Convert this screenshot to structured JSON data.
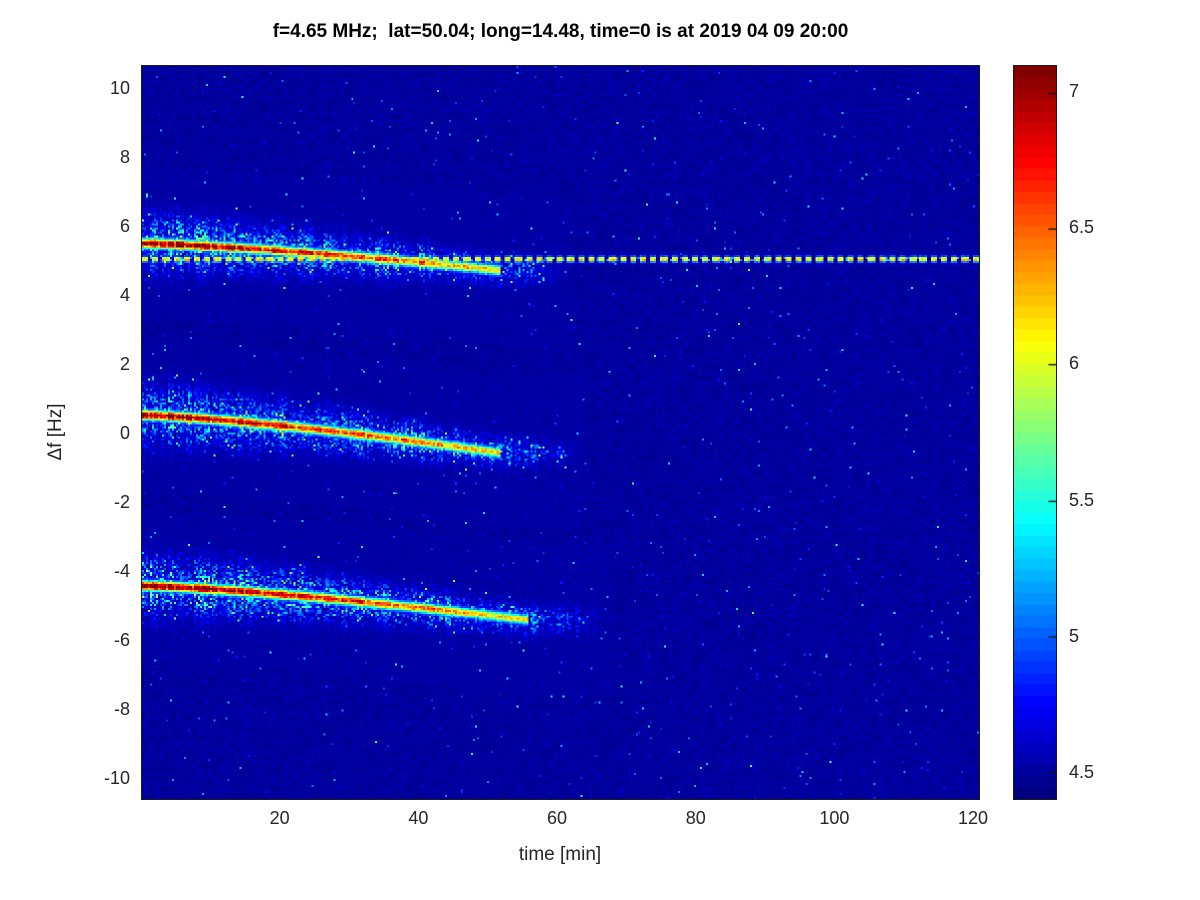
{
  "chart_data": {
    "type": "heatmap",
    "subtype": "doppler-spectrogram",
    "title": "f=4.65 MHz;  lat=50.04; long=14.48, time=0 is at 2019 04 09 20:00",
    "xlabel": "time [min]",
    "ylabel": "Δf [Hz]",
    "xlim": [
      0,
      121
    ],
    "ylim": [
      -10.6,
      10.7
    ],
    "clim": [
      4.4,
      7.1
    ],
    "colormap": "jet",
    "colormap_levels": 64,
    "grid": false,
    "legend": "none",
    "colorbar_position": "right",
    "xticks": [
      20,
      40,
      60,
      80,
      100,
      120
    ],
    "yticks": [
      10,
      8,
      6,
      4,
      2,
      0,
      -2,
      -4,
      -6,
      -8,
      -10
    ],
    "colorbar_ticks": [
      7,
      6.5,
      6,
      5.5,
      5,
      4.5
    ],
    "background_level": 4.5,
    "carrier_line": {
      "name": "constant-carrier-trace",
      "freq_hz": 5.08,
      "level": 6.2,
      "dash_period_min": 1.5,
      "dash_duty": 0.62,
      "t_start_min": 0,
      "t_end_min": 121
    },
    "bands": [
      {
        "name": "upper-doppler-trace",
        "f_start_hz": 5.55,
        "f_end_hz": 4.75,
        "t_start_min": 0,
        "t_end_min": 52,
        "fade_end_min": 62,
        "peak_level": 7.1,
        "end_level": 6.2,
        "halo_width_hz": 0.48
      },
      {
        "name": "center-doppler-trace",
        "f_start_hz": 0.55,
        "f_end_hz": -0.55,
        "t_start_min": 0,
        "t_end_min": 52,
        "fade_end_min": 64,
        "peak_level": 7.1,
        "end_level": 6.2,
        "halo_width_hz": 0.5
      },
      {
        "name": "lower-doppler-trace",
        "f_start_hz": -4.4,
        "f_end_hz": -5.4,
        "t_start_min": 0,
        "t_end_min": 56,
        "fade_end_min": 68,
        "peak_level": 7.1,
        "end_level": 6.2,
        "halo_width_hz": 0.5
      }
    ],
    "striation_period_min": 1.25,
    "striation_gap_fraction": 0.2,
    "noise": {
      "floor_level": 4.5,
      "speckle_probability": 0.013,
      "speckle_max_level": 5.7
    }
  },
  "colors": {
    "page_background": "#ffffff",
    "axis_text": "#262626",
    "title_text": "#000000",
    "plot_background": "#0000a0",
    "colorbar_top": "#800000",
    "colorbar_bottom": "#000080"
  }
}
